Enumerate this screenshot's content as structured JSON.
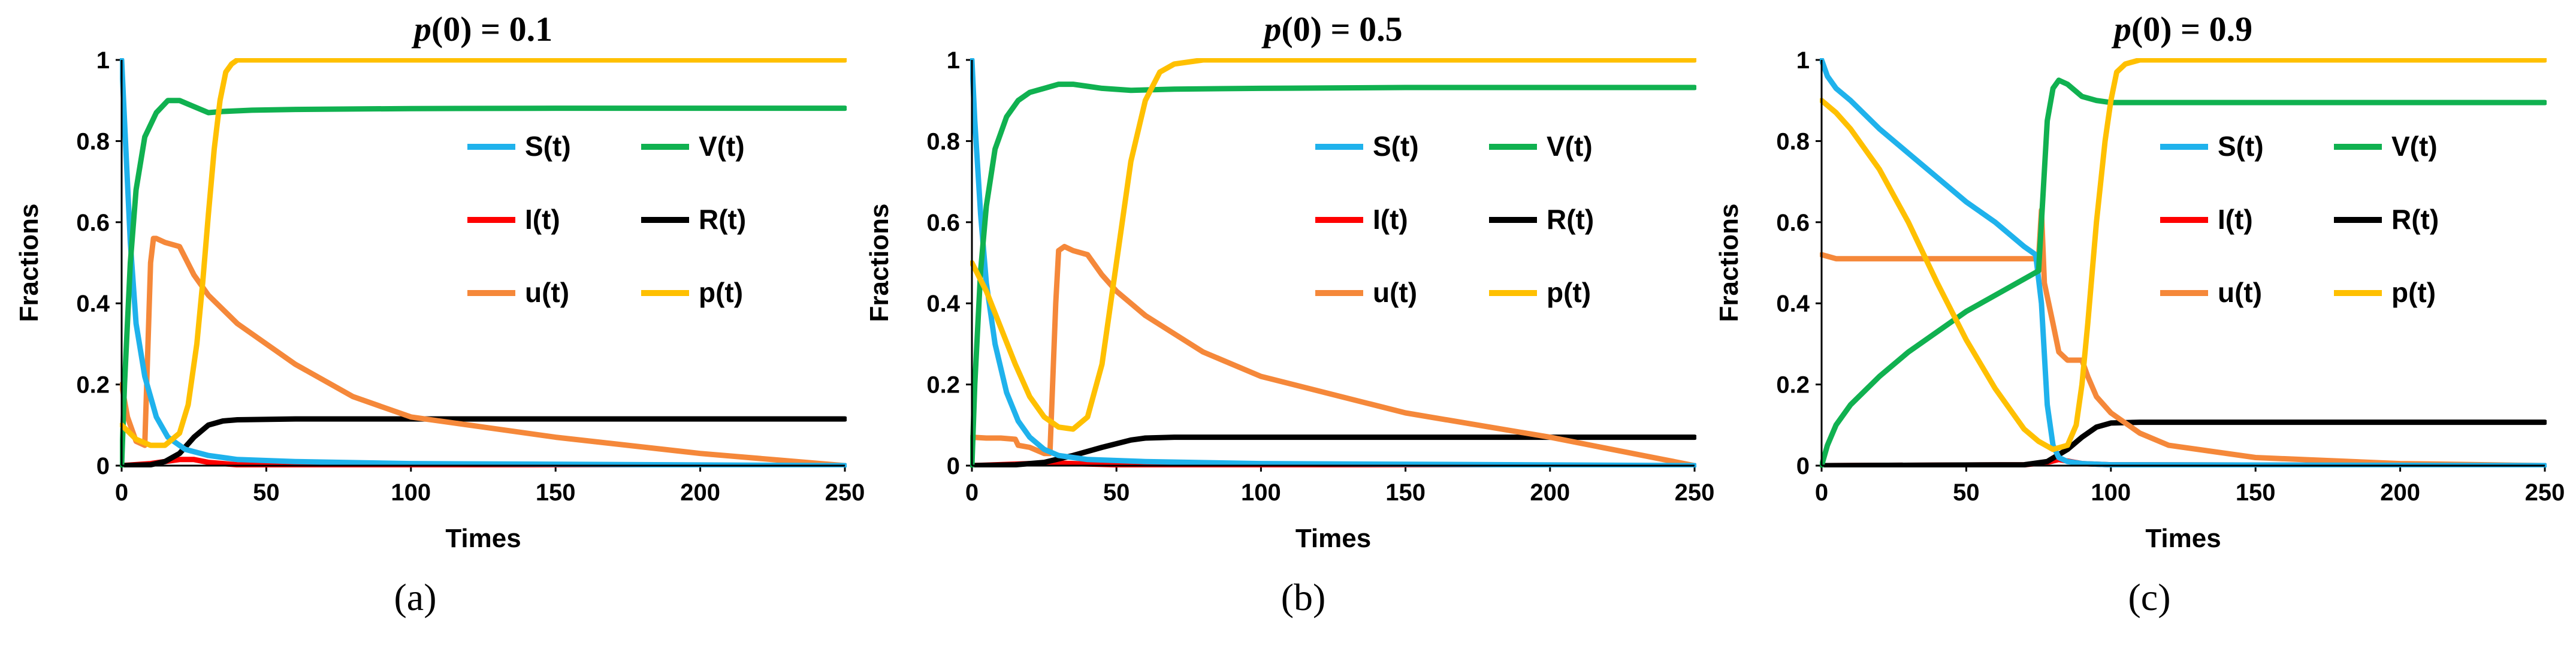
{
  "figure": {
    "captions": [
      "(a)",
      "(b)",
      "(c)"
    ]
  },
  "chart_data": [
    {
      "type": "line",
      "title": "p(0) = 0.1",
      "title_parts": {
        "left": "p",
        "right": "(0) = 0.1"
      },
      "xlabel": "Times",
      "ylabel": "Fractions",
      "xlim": [
        0,
        250
      ],
      "ylim": [
        0,
        1
      ],
      "xticks": [
        "0",
        "50",
        "100",
        "150",
        "200",
        "250"
      ],
      "yticks": [
        "0",
        "0.2",
        "0.4",
        "0.6",
        "0.8",
        "1"
      ],
      "legend_position": "center-right",
      "series": [
        {
          "name": "S(t)",
          "color": "#1FB2EC",
          "x": [
            0,
            1,
            3,
            5,
            8,
            12,
            16,
            22,
            30,
            40,
            60,
            100,
            250
          ],
          "y": [
            1.0,
            0.85,
            0.55,
            0.35,
            0.22,
            0.12,
            0.07,
            0.04,
            0.025,
            0.015,
            0.01,
            0.005,
            0.0
          ]
        },
        {
          "name": "V(t)",
          "color": "#10B150",
          "x": [
            0,
            1,
            3,
            5,
            8,
            12,
            16,
            20,
            25,
            30,
            35,
            45,
            60,
            100,
            150,
            250
          ],
          "y": [
            0.0,
            0.2,
            0.5,
            0.68,
            0.81,
            0.87,
            0.9,
            0.9,
            0.885,
            0.87,
            0.873,
            0.876,
            0.878,
            0.88,
            0.881,
            0.881
          ]
        },
        {
          "name": "I(t)",
          "color": "#FF0000",
          "x": [
            0,
            10,
            20,
            25,
            30,
            40,
            250
          ],
          "y": [
            0.0,
            0.005,
            0.015,
            0.015,
            0.008,
            0.002,
            0.0
          ]
        },
        {
          "name": "R(t)",
          "color": "#000000",
          "x": [
            0,
            10,
            15,
            20,
            25,
            30,
            35,
            40,
            60,
            100,
            250
          ],
          "y": [
            0.0,
            0.002,
            0.01,
            0.03,
            0.07,
            0.1,
            0.11,
            0.113,
            0.115,
            0.115,
            0.115
          ]
        },
        {
          "name": "u(t)",
          "color": "#F5883A",
          "x": [
            0,
            2,
            5,
            8,
            10,
            11,
            12,
            15,
            20,
            25,
            30,
            40,
            60,
            80,
            100,
            150,
            200,
            250
          ],
          "y": [
            0.2,
            0.12,
            0.06,
            0.05,
            0.5,
            0.56,
            0.56,
            0.55,
            0.54,
            0.47,
            0.42,
            0.35,
            0.25,
            0.17,
            0.12,
            0.07,
            0.03,
            0.0
          ]
        },
        {
          "name": "p(t)",
          "color": "#FFC000",
          "x": [
            0,
            5,
            10,
            15,
            20,
            23,
            26,
            28,
            30,
            32,
            34,
            36,
            38,
            40,
            45,
            60,
            100,
            250
          ],
          "y": [
            0.1,
            0.065,
            0.05,
            0.05,
            0.08,
            0.15,
            0.3,
            0.45,
            0.62,
            0.78,
            0.9,
            0.97,
            0.99,
            1.0,
            1.0,
            1.0,
            1.0,
            1.0
          ]
        }
      ]
    },
    {
      "type": "line",
      "title": "p(0) = 0.5",
      "title_parts": {
        "left": "p",
        "right": "(0) = 0.5"
      },
      "xlabel": "Times",
      "ylabel": "Fractions",
      "xlim": [
        0,
        250
      ],
      "ylim": [
        0,
        1
      ],
      "xticks": [
        "0",
        "50",
        "100",
        "150",
        "200",
        "250"
      ],
      "yticks": [
        "0",
        "0.2",
        "0.4",
        "0.6",
        "0.8",
        "1"
      ],
      "legend_position": "center-right",
      "series": [
        {
          "name": "S(t)",
          "color": "#1FB2EC",
          "x": [
            0,
            1,
            3,
            5,
            8,
            12,
            16,
            20,
            25,
            30,
            40,
            60,
            100,
            250
          ],
          "y": [
            1.0,
            0.85,
            0.62,
            0.45,
            0.3,
            0.18,
            0.11,
            0.07,
            0.04,
            0.025,
            0.015,
            0.01,
            0.005,
            0.0
          ]
        },
        {
          "name": "V(t)",
          "color": "#10B150",
          "x": [
            0,
            1,
            3,
            5,
            8,
            12,
            16,
            20,
            25,
            30,
            35,
            40,
            45,
            55,
            70,
            100,
            150,
            250
          ],
          "y": [
            0.0,
            0.2,
            0.48,
            0.64,
            0.78,
            0.86,
            0.9,
            0.92,
            0.93,
            0.94,
            0.94,
            0.935,
            0.93,
            0.925,
            0.928,
            0.93,
            0.932,
            0.932
          ]
        },
        {
          "name": "I(t)",
          "color": "#FF0000",
          "x": [
            0,
            20,
            30,
            40,
            50,
            250
          ],
          "y": [
            0.0,
            0.005,
            0.006,
            0.004,
            0.002,
            0.0
          ]
        },
        {
          "name": "R(t)",
          "color": "#000000",
          "x": [
            0,
            15,
            25,
            35,
            45,
            55,
            60,
            70,
            100,
            250
          ],
          "y": [
            0.0,
            0.002,
            0.008,
            0.025,
            0.045,
            0.063,
            0.068,
            0.07,
            0.07,
            0.07
          ]
        },
        {
          "name": "u(t)",
          "color": "#F5883A",
          "x": [
            0,
            5,
            10,
            15,
            16,
            20,
            25,
            27,
            29,
            30,
            32,
            35,
            40,
            45,
            50,
            60,
            80,
            100,
            150,
            200,
            250
          ],
          "y": [
            0.07,
            0.068,
            0.068,
            0.065,
            0.05,
            0.045,
            0.03,
            0.03,
            0.4,
            0.53,
            0.54,
            0.53,
            0.52,
            0.47,
            0.43,
            0.37,
            0.28,
            0.22,
            0.13,
            0.07,
            0.0
          ]
        },
        {
          "name": "p(t)",
          "color": "#FFC000",
          "x": [
            0,
            5,
            10,
            15,
            20,
            25,
            30,
            35,
            40,
            45,
            50,
            55,
            60,
            65,
            70,
            80,
            100,
            250
          ],
          "y": [
            0.5,
            0.43,
            0.34,
            0.25,
            0.17,
            0.12,
            0.095,
            0.09,
            0.12,
            0.25,
            0.5,
            0.75,
            0.9,
            0.97,
            0.99,
            1.0,
            1.0,
            1.0
          ]
        }
      ]
    },
    {
      "type": "line",
      "title": "p(0) = 0.9",
      "title_parts": {
        "left": "p",
        "right": "(0) = 0.9"
      },
      "xlabel": "Times",
      "ylabel": "Fractions",
      "xlim": [
        0,
        250
      ],
      "ylim": [
        0,
        1
      ],
      "xticks": [
        "0",
        "50",
        "100",
        "150",
        "200",
        "250"
      ],
      "yticks": [
        "0",
        "0.2",
        "0.4",
        "0.6",
        "0.8",
        "1"
      ],
      "legend_position": "center-right",
      "series": [
        {
          "name": "S(t)",
          "color": "#1FB2EC",
          "x": [
            0,
            2,
            5,
            10,
            20,
            30,
            40,
            50,
            60,
            70,
            74,
            76,
            78,
            80,
            82,
            85,
            90,
            100,
            250
          ],
          "y": [
            1.0,
            0.96,
            0.93,
            0.9,
            0.83,
            0.77,
            0.71,
            0.65,
            0.6,
            0.54,
            0.52,
            0.4,
            0.15,
            0.05,
            0.02,
            0.01,
            0.005,
            0.002,
            0.0
          ]
        },
        {
          "name": "V(t)",
          "color": "#10B150",
          "x": [
            0,
            2,
            5,
            10,
            20,
            30,
            40,
            50,
            60,
            70,
            75,
            76,
            78,
            80,
            82,
            85,
            90,
            95,
            100,
            150,
            250
          ],
          "y": [
            0.0,
            0.05,
            0.1,
            0.15,
            0.22,
            0.28,
            0.33,
            0.38,
            0.42,
            0.46,
            0.48,
            0.6,
            0.85,
            0.93,
            0.95,
            0.94,
            0.91,
            0.9,
            0.895,
            0.895,
            0.895
          ]
        },
        {
          "name": "I(t)",
          "color": "#FF0000",
          "x": [
            0,
            70,
            78,
            82,
            86,
            90,
            100,
            250
          ],
          "y": [
            0.0,
            0.002,
            0.008,
            0.015,
            0.01,
            0.005,
            0.002,
            0.0
          ]
        },
        {
          "name": "R(t)",
          "color": "#000000",
          "x": [
            0,
            70,
            78,
            85,
            90,
            95,
            100,
            110,
            250
          ],
          "y": [
            0.0,
            0.002,
            0.01,
            0.04,
            0.07,
            0.095,
            0.105,
            0.107,
            0.107
          ]
        },
        {
          "name": "u(t)",
          "color": "#F5883A",
          "x": [
            0,
            5,
            10,
            30,
            50,
            70,
            75,
            76,
            77,
            80,
            82,
            85,
            88,
            90,
            92,
            95,
            100,
            110,
            120,
            150,
            200,
            250
          ],
          "y": [
            0.52,
            0.51,
            0.51,
            0.51,
            0.51,
            0.51,
            0.51,
            0.63,
            0.45,
            0.35,
            0.28,
            0.26,
            0.26,
            0.26,
            0.22,
            0.17,
            0.13,
            0.08,
            0.05,
            0.02,
            0.005,
            0.0
          ]
        },
        {
          "name": "p(t)",
          "color": "#FFC000",
          "x": [
            0,
            5,
            10,
            20,
            30,
            40,
            50,
            60,
            70,
            75,
            80,
            85,
            88,
            90,
            92,
            95,
            98,
            100,
            102,
            105,
            110,
            120,
            250
          ],
          "y": [
            0.9,
            0.87,
            0.83,
            0.73,
            0.6,
            0.45,
            0.31,
            0.19,
            0.09,
            0.06,
            0.04,
            0.05,
            0.1,
            0.2,
            0.35,
            0.6,
            0.8,
            0.9,
            0.97,
            0.99,
            1.0,
            1.0,
            1.0
          ]
        }
      ]
    }
  ]
}
